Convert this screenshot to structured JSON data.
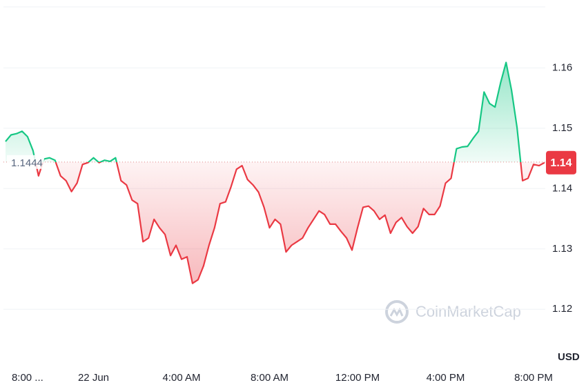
{
  "chart_data": {
    "type": "line",
    "categories": [
      null,
      null,
      null,
      null,
      "8:00 ...",
      null,
      null,
      null,
      null,
      null,
      null,
      null,
      null,
      null,
      null,
      null,
      "22 Jun",
      null,
      null,
      null,
      null,
      null,
      null,
      null,
      null,
      null,
      null,
      null,
      null,
      null,
      null,
      null,
      "4:00 AM",
      null,
      null,
      null,
      null,
      null,
      null,
      null,
      null,
      null,
      null,
      null,
      null,
      null,
      null,
      null,
      "8:00 AM",
      null,
      null,
      null,
      null,
      null,
      null,
      null,
      null,
      null,
      null,
      null,
      null,
      null,
      null,
      null,
      "12:00 PM",
      null,
      null,
      null,
      null,
      null,
      null,
      null,
      null,
      null,
      null,
      null,
      null,
      null,
      null,
      null,
      "4:00 PM",
      null,
      null,
      null,
      null,
      null,
      null,
      null,
      null,
      null,
      null,
      null,
      null,
      null,
      null,
      null,
      "8:00 PM",
      null,
      null
    ],
    "series": [
      {
        "values": [
          1.1478,
          1.1489,
          1.1491,
          1.1495,
          1.1486,
          1.1463,
          1.1421,
          1.1449,
          1.1451,
          1.1447,
          1.1421,
          1.1413,
          1.1395,
          1.1409,
          1.144,
          1.1443,
          1.1451,
          1.1443,
          1.1447,
          1.1445,
          1.1451,
          1.1413,
          1.1406,
          1.1381,
          1.1375,
          1.1312,
          1.1318,
          1.1349,
          1.1335,
          1.1324,
          1.1289,
          1.1306,
          1.1283,
          1.1287,
          1.1243,
          1.1249,
          1.1272,
          1.1306,
          1.1335,
          1.1375,
          1.1378,
          1.1403,
          1.1432,
          1.1438,
          1.1415,
          1.1406,
          1.1394,
          1.1369,
          1.1335,
          1.1349,
          1.1341,
          1.1295,
          1.1306,
          1.1312,
          1.1318,
          1.1335,
          1.1349,
          1.1363,
          1.1357,
          1.1341,
          1.1341,
          1.1329,
          1.1318,
          1.1298,
          1.1335,
          1.1369,
          1.1371,
          1.1363,
          1.1349,
          1.1356,
          1.1326,
          1.1344,
          1.1352,
          1.1337,
          1.1326,
          1.1337,
          1.1367,
          1.1357,
          1.1357,
          1.1371,
          1.1409,
          1.1417,
          1.1466,
          1.1469,
          1.147,
          1.1483,
          1.1495,
          1.156,
          1.1541,
          1.1535,
          1.1575,
          1.1609,
          1.1563,
          1.1501,
          1.1413,
          1.1417,
          1.144,
          1.1438,
          1.1443
        ]
      }
    ],
    "base_value": 1.1444,
    "up_color": "#16c784",
    "down_color": "#ea3943",
    "last_price_label": "1.14",
    "ylim": [
      1.1118,
      1.1701
    ],
    "yticks": [
      1.12,
      1.13,
      1.14,
      1.15,
      1.16
    ],
    "grid": true,
    "currency": "USD",
    "watermark": "CoinMarketCap"
  }
}
